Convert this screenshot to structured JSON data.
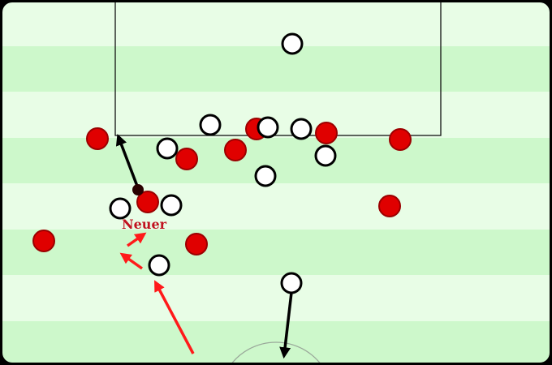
{
  "pitch": {
    "stripe_light": "#e8fde6",
    "stripe_dark": "#cdf8cb",
    "line_color": "#111111",
    "border_color": "#000000"
  },
  "colors": {
    "red_team": "#e00000",
    "red_outline": "#9b0000",
    "white_team": "#ffffff",
    "white_outline": "#000000",
    "ball": "#2a0000",
    "red_arrow": "#ff1a1a",
    "black_arrow": "#000000"
  },
  "labels": {
    "neuer": "Neuer"
  }
}
